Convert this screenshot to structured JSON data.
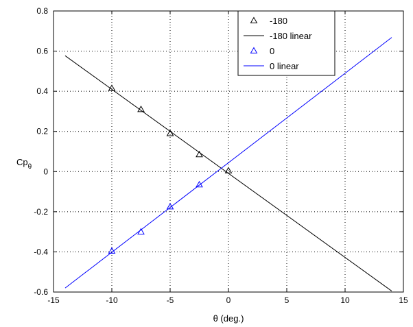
{
  "chart_data": {
    "type": "scatter",
    "title": "",
    "xlabel": "θ (deg.)",
    "ylabel": "Cp",
    "ylabel_subscript": "θ",
    "xlim": [
      -15,
      15
    ],
    "ylim": [
      -0.6,
      0.8
    ],
    "xticks": [
      -15,
      -10,
      -5,
      0,
      5,
      10,
      15
    ],
    "yticks": [
      -0.6,
      -0.4,
      -0.2,
      0,
      0.2,
      0.4,
      0.6,
      0.8
    ],
    "grid": true,
    "legend_position": "top-right",
    "series": [
      {
        "name": "-180",
        "kind": "markers",
        "marker": "triangle",
        "color": "#000000",
        "x": [
          -10,
          -7.5,
          -5,
          -2.5,
          0
        ],
        "y": [
          0.415,
          0.31,
          0.19,
          0.085,
          0.005
        ]
      },
      {
        "name": "-180 linear",
        "kind": "line",
        "color": "#000000",
        "x": [
          -14,
          14
        ],
        "y": [
          0.577,
          -0.595
        ]
      },
      {
        "name": "0",
        "kind": "markers",
        "marker": "triangle",
        "color": "#0000ff",
        "x": [
          -10,
          -7.5,
          -5,
          -2.5
        ],
        "y": [
          -0.395,
          -0.3,
          -0.175,
          -0.065
        ]
      },
      {
        "name": "0 linear",
        "kind": "line",
        "color": "#0000ff",
        "x": [
          -14,
          14
        ],
        "y": [
          -0.58,
          0.668
        ]
      }
    ]
  }
}
